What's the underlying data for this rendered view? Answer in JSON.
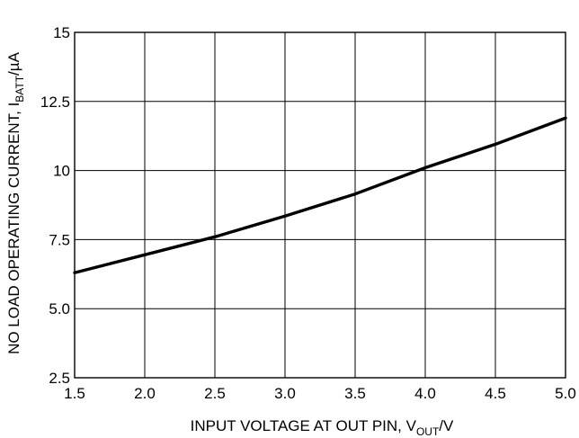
{
  "chart_data": {
    "type": "line",
    "x": [
      1.5,
      2.0,
      2.5,
      3.0,
      3.5,
      4.0,
      4.5,
      5.0
    ],
    "series": [
      {
        "values": [
          6.3,
          6.95,
          7.6,
          8.35,
          9.15,
          10.1,
          10.95,
          11.9
        ]
      }
    ],
    "xlim": [
      1.5,
      5.0
    ],
    "ylim": [
      2.5,
      15
    ],
    "x_ticks": [
      "1.5",
      "2.0",
      "2.5",
      "3.0",
      "3.5",
      "4.0",
      "4.5",
      "5.0"
    ],
    "y_ticks": [
      "2.5",
      "5.0",
      "7.5",
      "10",
      "12.5",
      "15"
    ],
    "xlabel": {
      "main": "INPUT VOLTAGE AT OUT PIN, V",
      "sub": "OUT",
      "unit": "/V"
    },
    "ylabel": {
      "main": "NO LOAD OPERATING CURRENT, I",
      "sub": "BATT",
      "unit": "/µA"
    },
    "grid": true,
    "line_color": "#000000"
  }
}
